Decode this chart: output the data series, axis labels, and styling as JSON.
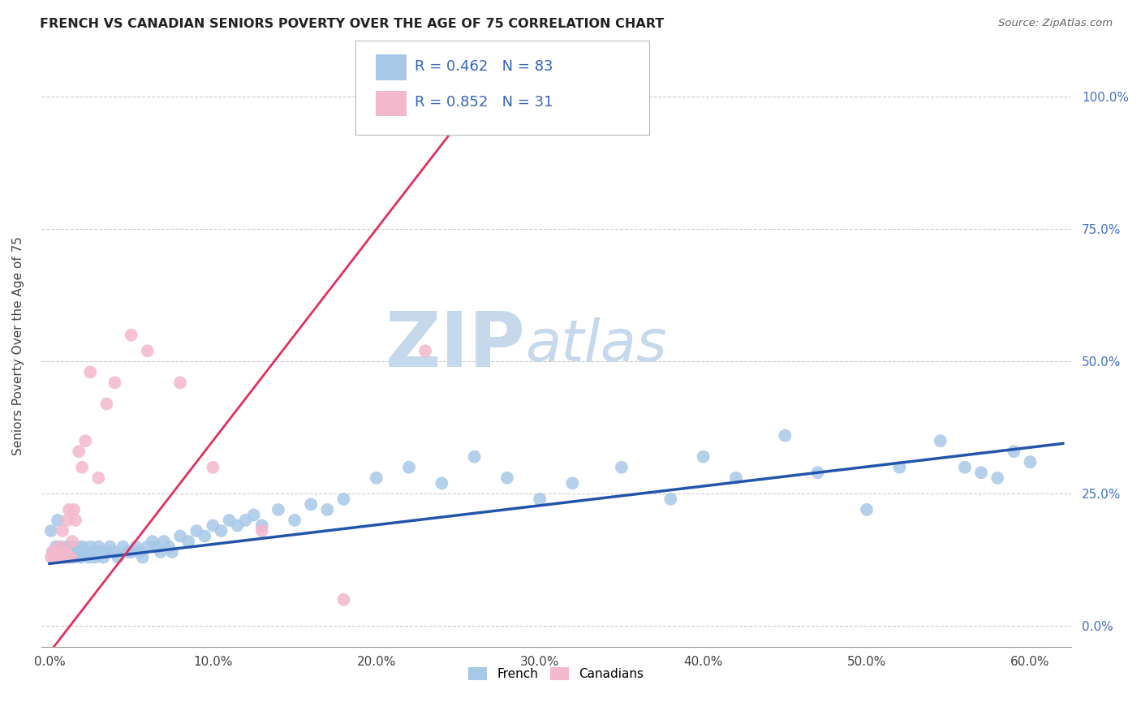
{
  "title": "FRENCH VS CANADIAN SENIORS POVERTY OVER THE AGE OF 75 CORRELATION CHART",
  "source": "Source: ZipAtlas.com",
  "ylabel": "Seniors Poverty Over the Age of 75",
  "french_R": 0.462,
  "french_N": 83,
  "canadian_R": 0.852,
  "canadian_N": 31,
  "legend_labels": [
    "French",
    "Canadians"
  ],
  "french_color": "#a8c8e8",
  "canadian_color": "#f4b8cc",
  "french_line_color": "#2255aa",
  "canadian_line_color": "#e03060",
  "watermark_zip": "ZIP",
  "watermark_atlas": "atlas",
  "watermark_color_zip": "#c5d8ec",
  "watermark_color_atlas": "#c5d8ec",
  "french_x": [
    0.001,
    0.002,
    0.003,
    0.004,
    0.005,
    0.006,
    0.007,
    0.008,
    0.009,
    0.01,
    0.011,
    0.012,
    0.013,
    0.014,
    0.015,
    0.016,
    0.017,
    0.018,
    0.019,
    0.02,
    0.022,
    0.024,
    0.025,
    0.027,
    0.028,
    0.03,
    0.032,
    0.033,
    0.035,
    0.037,
    0.04,
    0.042,
    0.045,
    0.048,
    0.05,
    0.053,
    0.055,
    0.057,
    0.06,
    0.063,
    0.065,
    0.068,
    0.07,
    0.073,
    0.075,
    0.08,
    0.085,
    0.09,
    0.095,
    0.1,
    0.105,
    0.11,
    0.115,
    0.12,
    0.125,
    0.13,
    0.14,
    0.15,
    0.16,
    0.17,
    0.18,
    0.2,
    0.22,
    0.24,
    0.26,
    0.28,
    0.3,
    0.32,
    0.35,
    0.38,
    0.4,
    0.42,
    0.45,
    0.47,
    0.5,
    0.52,
    0.545,
    0.56,
    0.57,
    0.58,
    0.59,
    0.6,
    0.005
  ],
  "french_y": [
    0.18,
    0.14,
    0.13,
    0.15,
    0.14,
    0.13,
    0.15,
    0.14,
    0.13,
    0.14,
    0.15,
    0.13,
    0.14,
    0.15,
    0.13,
    0.14,
    0.15,
    0.14,
    0.13,
    0.15,
    0.14,
    0.13,
    0.15,
    0.14,
    0.13,
    0.15,
    0.14,
    0.13,
    0.14,
    0.15,
    0.14,
    0.13,
    0.15,
    0.14,
    0.14,
    0.15,
    0.14,
    0.13,
    0.15,
    0.16,
    0.15,
    0.14,
    0.16,
    0.15,
    0.14,
    0.17,
    0.16,
    0.18,
    0.17,
    0.19,
    0.18,
    0.2,
    0.19,
    0.2,
    0.21,
    0.19,
    0.22,
    0.2,
    0.23,
    0.22,
    0.24,
    0.28,
    0.3,
    0.27,
    0.32,
    0.28,
    0.24,
    0.27,
    0.3,
    0.24,
    0.32,
    0.28,
    0.36,
    0.29,
    0.22,
    0.3,
    0.35,
    0.3,
    0.29,
    0.28,
    0.33,
    0.31,
    0.2
  ],
  "canadian_x": [
    0.001,
    0.002,
    0.003,
    0.004,
    0.005,
    0.006,
    0.007,
    0.008,
    0.009,
    0.01,
    0.011,
    0.012,
    0.013,
    0.014,
    0.015,
    0.016,
    0.018,
    0.02,
    0.022,
    0.025,
    0.03,
    0.035,
    0.04,
    0.05,
    0.06,
    0.08,
    0.1,
    0.13,
    0.18,
    0.23,
    0.26
  ],
  "canadian_y": [
    0.13,
    0.14,
    0.13,
    0.14,
    0.13,
    0.15,
    0.14,
    0.18,
    0.13,
    0.14,
    0.2,
    0.22,
    0.13,
    0.16,
    0.22,
    0.2,
    0.33,
    0.3,
    0.35,
    0.48,
    0.28,
    0.42,
    0.46,
    0.55,
    0.52,
    0.46,
    0.3,
    0.18,
    0.05,
    0.52,
    1.0
  ],
  "xlim": [
    -0.005,
    0.625
  ],
  "ylim": [
    -0.04,
    1.1
  ],
  "x_ticks": [
    0.0,
    0.1,
    0.2,
    0.3,
    0.4,
    0.5,
    0.6
  ],
  "y_ticks": [
    0.0,
    0.25,
    0.5,
    0.75,
    1.0
  ],
  "french_trend_x0": 0.0,
  "french_trend_y0": 0.118,
  "french_trend_x1": 0.62,
  "french_trend_y1": 0.345,
  "canadian_trend_x0": 0.0,
  "canadian_trend_y0": -0.05,
  "canadian_trend_x1": 0.27,
  "canadian_trend_y1": 1.03
}
